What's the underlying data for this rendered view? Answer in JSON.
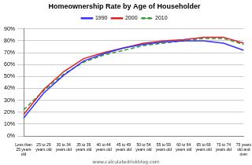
{
  "chart_data": {
    "type": "line",
    "title": "Homeownership Rate by Age of Householder",
    "annotation": "www.calculatedriskblog.com",
    "categories": [
      "Less than 25 years old",
      "25 to 29 years old",
      "30 to 34 years old",
      "35 to 39 years old",
      "40 to 44 years old",
      "45 to 49 years old",
      "50 to 54 years old",
      "55 to 59 years old",
      "60 to 64 years old",
      "65 to 69 years old",
      "70 to 74 years old",
      "75 years old and over"
    ],
    "series": [
      {
        "name": "1990",
        "color": "#3333ff",
        "line_style": "solid",
        "marker": "none",
        "values": [
          15,
          36,
          51,
          63,
          69,
          74,
          77,
          79,
          80,
          80,
          78,
          72
        ]
      },
      {
        "name": "2000",
        "color": "#dd2222",
        "line_style": "solid",
        "marker": "none",
        "values": [
          18,
          39,
          54,
          65,
          70,
          74,
          78,
          80,
          81,
          83,
          83,
          78
        ]
      },
      {
        "name": "2010",
        "color": "#339933",
        "line_style": "dashed",
        "marker": "none",
        "values": [
          22,
          38,
          52,
          62,
          68,
          72,
          76,
          78,
          80,
          82,
          82,
          77
        ]
      }
    ],
    "ylim": [
      0,
      90
    ],
    "yticks": [
      {
        "value": 0,
        "label": "0%"
      },
      {
        "value": 10,
        "label": "10%"
      },
      {
        "value": 20,
        "label": "20%"
      },
      {
        "value": 30,
        "label": "30%"
      },
      {
        "value": 40,
        "label": "40%"
      },
      {
        "value": 50,
        "label": "50%"
      },
      {
        "value": 60,
        "label": "60%"
      },
      {
        "value": 70,
        "label": "70%"
      },
      {
        "value": 80,
        "label": "80%"
      },
      {
        "value": 90,
        "label": "90%"
      }
    ],
    "grid": true,
    "legend": "top"
  }
}
